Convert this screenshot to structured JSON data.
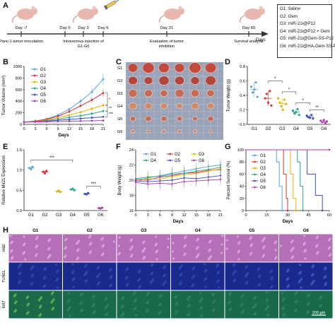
{
  "panels": {
    "A": "A",
    "B": "B",
    "C": "C",
    "D": "D",
    "E": "E",
    "F": "F",
    "G": "G",
    "H": "H"
  },
  "timeline": {
    "events": [
      {
        "day": "Day -7",
        "label": "Panc-1 tumor inoculation"
      },
      {
        "day": "Day 0",
        "label": ""
      },
      {
        "day": "Day 3",
        "label": "Intravenous injection of G1-G6"
      },
      {
        "day": "Day 6",
        "label": ""
      },
      {
        "day": "Day 21",
        "label": "Evaluation of tumor inhibition"
      },
      {
        "day": "Day 60",
        "label": "Survival analysis"
      }
    ],
    "arrow_label": "Days"
  },
  "groups_legend": [
    "G1: Saline",
    "G2: Gem",
    "G3: miR-21i@P12",
    "G4: miR-21i@P12 + Gem",
    "G5: miR-21i@Gem-SS-P12",
    "G6: miR-21i@HA-Gem-SS-P12"
  ],
  "colors": {
    "G1": "#5ba3d9",
    "G2": "#d6303a",
    "G3": "#e6b400",
    "G4": "#2aa68c",
    "G5": "#3f51c4",
    "G6": "#b23fb0"
  },
  "photo_rows": [
    "G1",
    "G2",
    "G3",
    "G4",
    "G5",
    "G6"
  ],
  "histology": {
    "columns": [
      "G1",
      "G2",
      "G3",
      "G4",
      "G5",
      "G6"
    ],
    "rows": [
      "H&E",
      "TUNEL",
      "Ki67"
    ],
    "scale_bar": "200 μm",
    "row_colors": [
      "#b56fb8",
      "#1a2a8c",
      "#1a6a4a"
    ]
  },
  "chart_data": [
    {
      "id": "B",
      "type": "line",
      "xlabel": "Days",
      "ylabel": "Tumor Volume (mm³)",
      "x": [
        0,
        3,
        6,
        9,
        12,
        15,
        18,
        21
      ],
      "ylim": [
        0,
        1000
      ],
      "yticks": [
        0,
        200,
        400,
        600,
        800,
        1000
      ],
      "series": [
        {
          "name": "G1",
          "values": [
            40,
            60,
            95,
            160,
            260,
            400,
            560,
            780
          ]
        },
        {
          "name": "G2",
          "values": [
            40,
            55,
            85,
            140,
            220,
            320,
            420,
            540
          ]
        },
        {
          "name": "G3",
          "values": [
            40,
            52,
            75,
            115,
            160,
            210,
            270,
            330
          ]
        },
        {
          "name": "G4",
          "values": [
            40,
            48,
            65,
            90,
            120,
            150,
            185,
            230
          ]
        },
        {
          "name": "G5",
          "values": [
            40,
            45,
            55,
            70,
            85,
            100,
            115,
            130
          ]
        },
        {
          "name": "G6",
          "values": [
            40,
            42,
            45,
            50,
            55,
            58,
            62,
            65
          ]
        }
      ],
      "sig": [
        "*",
        "**",
        "***"
      ]
    },
    {
      "id": "D",
      "type": "scatter",
      "ylabel": "Tumor Weight (g)",
      "categories": [
        "G1",
        "G2",
        "G3",
        "G4",
        "G5",
        "G6"
      ],
      "ylim": [
        0,
        0.8
      ],
      "yticks": [
        0.0,
        0.2,
        0.4,
        0.6,
        0.8
      ],
      "points": [
        [
          0.52,
          0.44,
          0.48,
          0.58,
          0.38
        ],
        [
          0.36,
          0.42,
          0.3,
          0.46,
          0.26
        ],
        [
          0.36,
          0.3,
          0.25,
          0.2,
          0.34,
          0.28
        ],
        [
          0.19,
          0.15,
          0.17,
          0.21,
          0.13
        ],
        [
          0.12,
          0.1,
          0.09,
          0.13,
          0.08
        ],
        [
          0.05,
          0.03,
          0.06,
          0.02,
          0.04
        ]
      ],
      "means": [
        0.48,
        0.36,
        0.29,
        0.17,
        0.1,
        0.04
      ],
      "sig": [
        "*",
        "*",
        "*",
        "**"
      ]
    },
    {
      "id": "E",
      "type": "scatter",
      "ylabel": "Relative Mir21 Expression",
      "categories": [
        "G1",
        "G2",
        "G3",
        "G4",
        "G5",
        "G6"
      ],
      "ylim": [
        0.0,
        1.5
      ],
      "yticks": [
        0.0,
        0.5,
        1.0,
        1.5
      ],
      "points": [
        [
          1.05,
          1.02,
          1.08
        ],
        [
          0.96,
          0.92,
          0.98
        ],
        [
          0.47,
          0.49,
          0.46
        ],
        [
          0.52,
          0.54,
          0.5
        ],
        [
          0.41,
          0.4,
          0.43
        ],
        [
          0.06,
          0.05,
          0.07
        ]
      ],
      "means": [
        1.05,
        0.95,
        0.47,
        0.52,
        0.41,
        0.06
      ],
      "sig": [
        "***",
        "***"
      ]
    },
    {
      "id": "F",
      "type": "line",
      "xlabel": "Days",
      "ylabel": "Body Weight (g)",
      "x": [
        0,
        3,
        6,
        9,
        12,
        15,
        18,
        21
      ],
      "ylim": [
        16,
        24
      ],
      "yticks": [
        16,
        18,
        20,
        22,
        24
      ],
      "series": [
        {
          "name": "G1",
          "values": [
            20.0,
            20.3,
            20.6,
            20.9,
            21.2,
            21.5,
            21.8,
            22.0
          ]
        },
        {
          "name": "G2",
          "values": [
            20.1,
            20.0,
            20.4,
            20.6,
            20.9,
            21.0,
            21.3,
            21.4
          ]
        },
        {
          "name": "G3",
          "values": [
            19.8,
            20.2,
            20.1,
            20.5,
            20.7,
            20.9,
            21.2,
            21.5
          ]
        },
        {
          "name": "G4",
          "values": [
            20.2,
            20.4,
            20.5,
            20.8,
            20.9,
            21.2,
            21.4,
            21.7
          ]
        },
        {
          "name": "G5",
          "values": [
            19.9,
            19.8,
            19.9,
            20.0,
            20.3,
            20.2,
            20.4,
            20.6
          ]
        },
        {
          "name": "G6",
          "values": [
            19.7,
            19.5,
            19.6,
            19.5,
            19.8,
            19.9,
            20.0,
            20.1
          ]
        }
      ]
    },
    {
      "id": "G",
      "type": "line",
      "xlabel": "Days",
      "ylabel": "Percent Survival (%)",
      "x": [
        0,
        15,
        30,
        45,
        60
      ],
      "xlim": [
        0,
        60
      ],
      "ylim": [
        0,
        100
      ],
      "yticks": [
        0,
        20,
        40,
        60,
        80,
        100
      ],
      "series": [
        {
          "name": "G1",
          "steps": [
            [
              0,
              100
            ],
            [
              22,
              100
            ],
            [
              22,
              80
            ],
            [
              24,
              80
            ],
            [
              24,
              40
            ],
            [
              26,
              40
            ],
            [
              26,
              0
            ]
          ]
        },
        {
          "name": "G2",
          "steps": [
            [
              0,
              100
            ],
            [
              27,
              100
            ],
            [
              27,
              60
            ],
            [
              29,
              60
            ],
            [
              29,
              20
            ],
            [
              30,
              20
            ],
            [
              30,
              0
            ]
          ]
        },
        {
          "name": "G3",
          "steps": [
            [
              0,
              100
            ],
            [
              32,
              100
            ],
            [
              32,
              60
            ],
            [
              34,
              60
            ],
            [
              34,
              20
            ],
            [
              36,
              20
            ],
            [
              36,
              0
            ]
          ]
        },
        {
          "name": "G4",
          "steps": [
            [
              0,
              100
            ],
            [
              37,
              100
            ],
            [
              37,
              80
            ],
            [
              39,
              80
            ],
            [
              39,
              40
            ],
            [
              41,
              40
            ],
            [
              41,
              0
            ]
          ]
        },
        {
          "name": "G5",
          "steps": [
            [
              0,
              100
            ],
            [
              44,
              100
            ],
            [
              44,
              60
            ],
            [
              50,
              60
            ],
            [
              50,
              25
            ],
            [
              55,
              25
            ],
            [
              55,
              0
            ]
          ]
        },
        {
          "name": "G6",
          "steps": [
            [
              0,
              100
            ],
            [
              60,
              100
            ]
          ]
        }
      ]
    }
  ]
}
